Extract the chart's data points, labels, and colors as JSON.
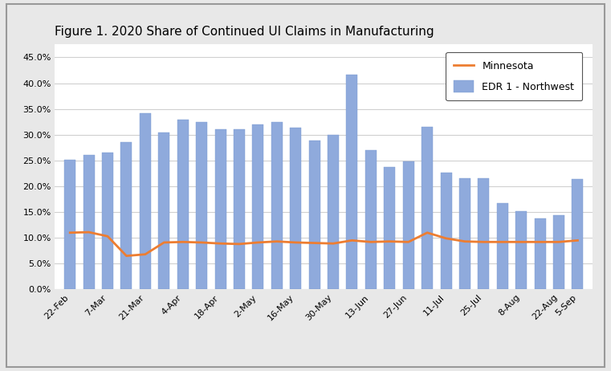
{
  "title": "Figure 1. 2020 Share of Continued UI Claims in Manufacturing",
  "categories": [
    "22-Feb",
    "7-Mar",
    "21-Mar",
    "4-Apr",
    "18-Apr",
    "2-May",
    "16-May",
    "30-May",
    "13-Jun",
    "27-Jun",
    "11-Jul",
    "25-Jul",
    "8-Aug",
    "22-Aug",
    "5-Sep"
  ],
  "edr_values": [
    0.251,
    0.261,
    0.265,
    0.286,
    0.342,
    0.304,
    0.33,
    0.325,
    0.31,
    0.311,
    0.32,
    0.325,
    0.314,
    0.289,
    0.3,
    0.416,
    0.27,
    0.237,
    0.249,
    0.316,
    0.226,
    0.216,
    0.216,
    0.168,
    0.151,
    0.137,
    0.144,
    0.214
  ],
  "mn_values": [
    0.11,
    0.111,
    0.103,
    0.065,
    0.068,
    0.091,
    0.092,
    0.091,
    0.089,
    0.088,
    0.091,
    0.093,
    0.091,
    0.09,
    0.089,
    0.095,
    0.092,
    0.093,
    0.092,
    0.11,
    0.099,
    0.093,
    0.092,
    0.092,
    0.092,
    0.092,
    0.092,
    0.095
  ],
  "bar_color": "#8faadc",
  "bar_edge_color": "#7a9bd0",
  "line_color": "#ed7d31",
  "ylim": [
    0,
    0.475
  ],
  "yticks": [
    0.0,
    0.05,
    0.1,
    0.15,
    0.2,
    0.25,
    0.3,
    0.35,
    0.4,
    0.45
  ],
  "legend_labels": [
    "EDR 1 - Northwest",
    "Minnesota"
  ],
  "fig_bg_color": "#e8e8e8",
  "plot_bg_color": "#ffffff",
  "grid_color": "#d0d0d0",
  "tick_label_fontsize": 8,
  "title_fontsize": 11
}
